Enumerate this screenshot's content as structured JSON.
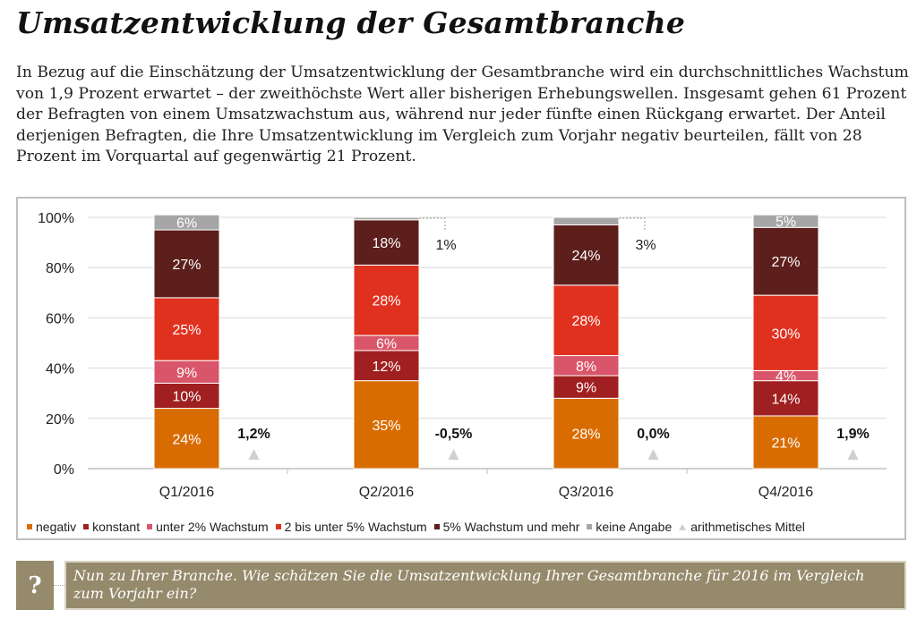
{
  "title": "Umsatzentwicklung der Gesamtbranche",
  "intro": "In Bezug auf die Einschätzung der Umsatzentwicklung der Gesamtbranche wird ein durchschnittliches Wachstum von 1,9 Prozent erwartet – der zweithöchste Wert aller bisherigen Erhebungswellen. Insgesamt gehen 61 Prozent der Befragten von einem Umsatzwachstum aus, während nur jeder fünfte einen Rückgang erwartet. Der Anteil derjenigen Befragten, die Ihre Umsatzentwicklung im Vergleich zum Vorjahr negativ beurteilen, fällt von 28 Prozent im Vorquartal auf gegenwärtig 21 Prozent.",
  "chart_data": {
    "type": "bar",
    "stacked": true,
    "categories": [
      "Q1/2016",
      "Q2/2016",
      "Q3/2016",
      "Q4/2016"
    ],
    "ylim": [
      0,
      100
    ],
    "yticks": [
      "0%",
      "20%",
      "40%",
      "60%",
      "80%",
      "100%"
    ],
    "grid": true,
    "legend_position": "bottom",
    "series": [
      {
        "name": "negativ",
        "color": "#d96c00",
        "values": [
          24,
          35,
          28,
          21
        ]
      },
      {
        "name": "konstant",
        "color": "#a01f20",
        "values": [
          10,
          12,
          9,
          14
        ]
      },
      {
        "name": "unter 2% Wachstum",
        "color": "#d9566a",
        "values": [
          9,
          6,
          8,
          4
        ]
      },
      {
        "name": "2 bis unter 5% Wachstum",
        "color": "#e0311f",
        "values": [
          25,
          28,
          28,
          30
        ]
      },
      {
        "name": "5% Wachstum und mehr",
        "color": "#5c1f1b",
        "values": [
          27,
          18,
          24,
          27
        ]
      },
      {
        "name": "keine Angabe",
        "color": "#a6a6a6",
        "values": [
          6,
          1,
          3,
          5
        ]
      }
    ],
    "mean": {
      "name": "arithmetisches Mittel",
      "color": "#d0d0d0",
      "labels": [
        "1,2%",
        "-0,5%",
        "0,0%",
        "1,9%"
      ]
    }
  },
  "question": {
    "icon": "question-mark-icon",
    "mark": "?",
    "text": "Nun zu Ihrer Branche. Wie schätzen Sie die Umsatzentwicklung Ihrer Gesamtbranche für 2016 im Vergleich zum Vorjahr ein?"
  }
}
